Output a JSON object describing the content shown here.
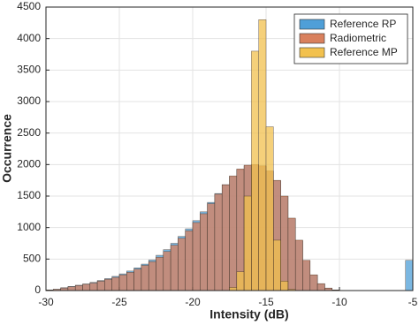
{
  "chart_data": {
    "type": "histogram",
    "xlabel": "Intensity (dB)",
    "ylabel": "Occurrence",
    "bins": [
      -30,
      -29.5,
      -29,
      -28.5,
      -28,
      -27.5,
      -27,
      -26.5,
      -26,
      -25.5,
      -25,
      -24.5,
      -24,
      -23.5,
      -23,
      -22.5,
      -22,
      -21.5,
      -21,
      -20.5,
      -20,
      -19.5,
      -19,
      -18.5,
      -18,
      -17.5,
      -17,
      -16.5,
      -16,
      -15.5,
      -15,
      -14.5,
      -14,
      -13.5,
      -13,
      -12.5,
      -12,
      -11.5,
      -11,
      -10.5,
      -10,
      -9.5,
      -9,
      -8.5,
      -8,
      -7.5,
      -7,
      -6.5,
      -6,
      -5.5,
      -5
    ],
    "series": [
      {
        "name": "Reference RP",
        "color": "#4f9fd8",
        "values": [
          10,
          20,
          45,
          65,
          85,
          105,
          130,
          160,
          190,
          225,
          265,
          310,
          360,
          420,
          485,
          560,
          650,
          750,
          860,
          980,
          1110,
          1250,
          1400,
          1540,
          1680,
          1810,
          1920,
          1980,
          1990,
          1970,
          1890,
          1740,
          1490,
          1140,
          790,
          470,
          245,
          105,
          38,
          10,
          2,
          0,
          0,
          0,
          0,
          0,
          0,
          0,
          0,
          480
        ]
      },
      {
        "name": "Radiometric",
        "color": "#d9805d",
        "values": [
          10,
          20,
          40,
          60,
          80,
          100,
          120,
          150,
          180,
          210,
          250,
          290,
          340,
          400,
          460,
          530,
          620,
          720,
          830,
          950,
          1080,
          1220,
          1380,
          1530,
          1680,
          1820,
          1930,
          1990,
          2000,
          1980,
          1900,
          1750,
          1500,
          1150,
          800,
          480,
          250,
          110,
          40,
          10,
          2,
          0,
          0,
          0,
          0,
          0,
          0,
          0,
          0,
          0
        ]
      },
      {
        "name": "Reference MP",
        "color": "#f2c14e",
        "values": [
          0,
          0,
          0,
          0,
          0,
          0,
          0,
          0,
          0,
          0,
          0,
          0,
          0,
          0,
          0,
          0,
          0,
          0,
          0,
          0,
          0,
          0,
          0,
          0,
          0,
          50,
          300,
          1500,
          3800,
          4300,
          2600,
          800,
          150,
          20,
          0,
          0,
          0,
          0,
          0,
          0,
          0,
          0,
          0,
          0,
          0,
          0,
          0,
          0,
          0,
          0
        ]
      }
    ],
    "xlim": [
      -30,
      -5
    ],
    "xticks": [
      -30,
      -25,
      -20,
      -15,
      -10,
      -5
    ],
    "ylim": [
      0,
      4500
    ],
    "yticks": [
      0,
      500,
      1000,
      1500,
      2000,
      2500,
      3000,
      3500,
      4000,
      4500
    ],
    "grid": true,
    "legend": "upper-right"
  }
}
